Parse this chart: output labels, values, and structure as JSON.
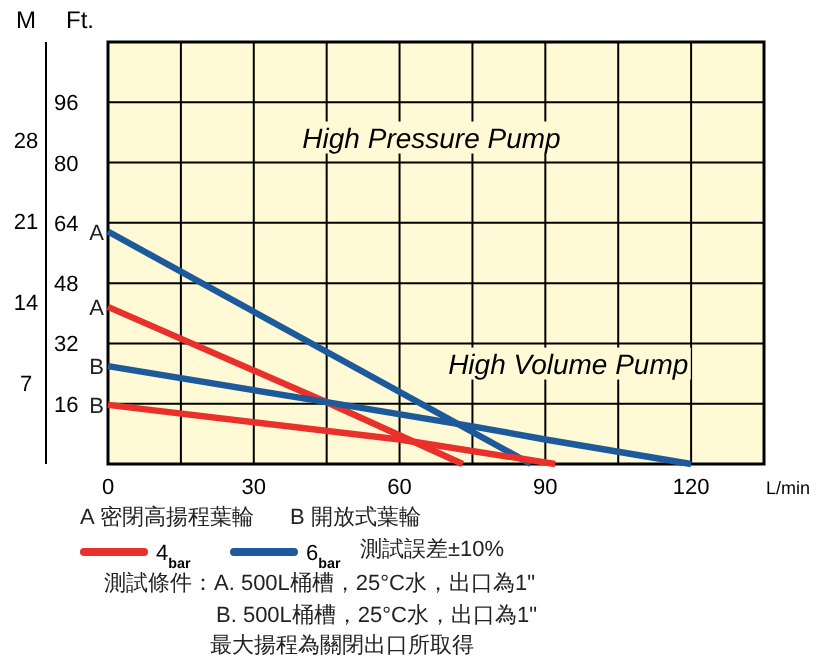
{
  "chart_data": {
    "type": "line",
    "xlabel": "L/min",
    "ylabel": "Ft.",
    "y2label": "M",
    "xlim": [
      0,
      135
    ],
    "xticks": [
      0,
      {
        "value": 15,
        "label": null
      },
      30,
      {
        "value": 45,
        "label": null
      },
      60,
      {
        "value": 75,
        "label": null
      },
      90,
      {
        "value": 105,
        "label": null
      },
      120
    ],
    "ylim": [
      0,
      112
    ],
    "yticks": [
      16,
      32,
      48,
      64,
      80,
      96
    ],
    "y2lim": [
      0,
      36.5
    ],
    "y2ticks": [
      7,
      14,
      21,
      28
    ],
    "grid": true,
    "legend": "bottom",
    "line_style": "solid",
    "series": [
      {
        "name": "4$_{bar}$",
        "color": "#e8312a",
        "x": [
          0,
          45,
          73
        ],
        "values": [
          41.7,
          16.4,
          0
        ]
      },
      {
        "name": "6$_{bar}$",
        "color": "#1d5a9c",
        "x": [
          0,
          87
        ],
        "values": [
          61.7,
          0
        ]
      },
      {
        "color": "#1d5a9c",
        "x": [
          0,
          45,
          75,
          90,
          120
        ],
        "values": [
          26,
          16.4,
          10,
          6.5,
          0
        ]
      },
      {
        "color": "#e8312a",
        "x": [
          0,
          60,
          92
        ],
        "values": [
          15.7,
          6.5,
          0
        ]
      }
    ],
    "annotations": [
      "A",
      "A",
      "B",
      "B",
      "High Pressure Pump",
      "High Volume Pump",
      "A 密閉高揚程葉輪",
      "B 開放式葉輪",
      "測試誤差±10%",
      "測試條件：A. 500L桶槽，25°C水，出口為1\"",
      "B. 500L桶槽，25°C水，出口為1\"",
      "最大揚程為關閉出口所取得"
    ]
  }
}
